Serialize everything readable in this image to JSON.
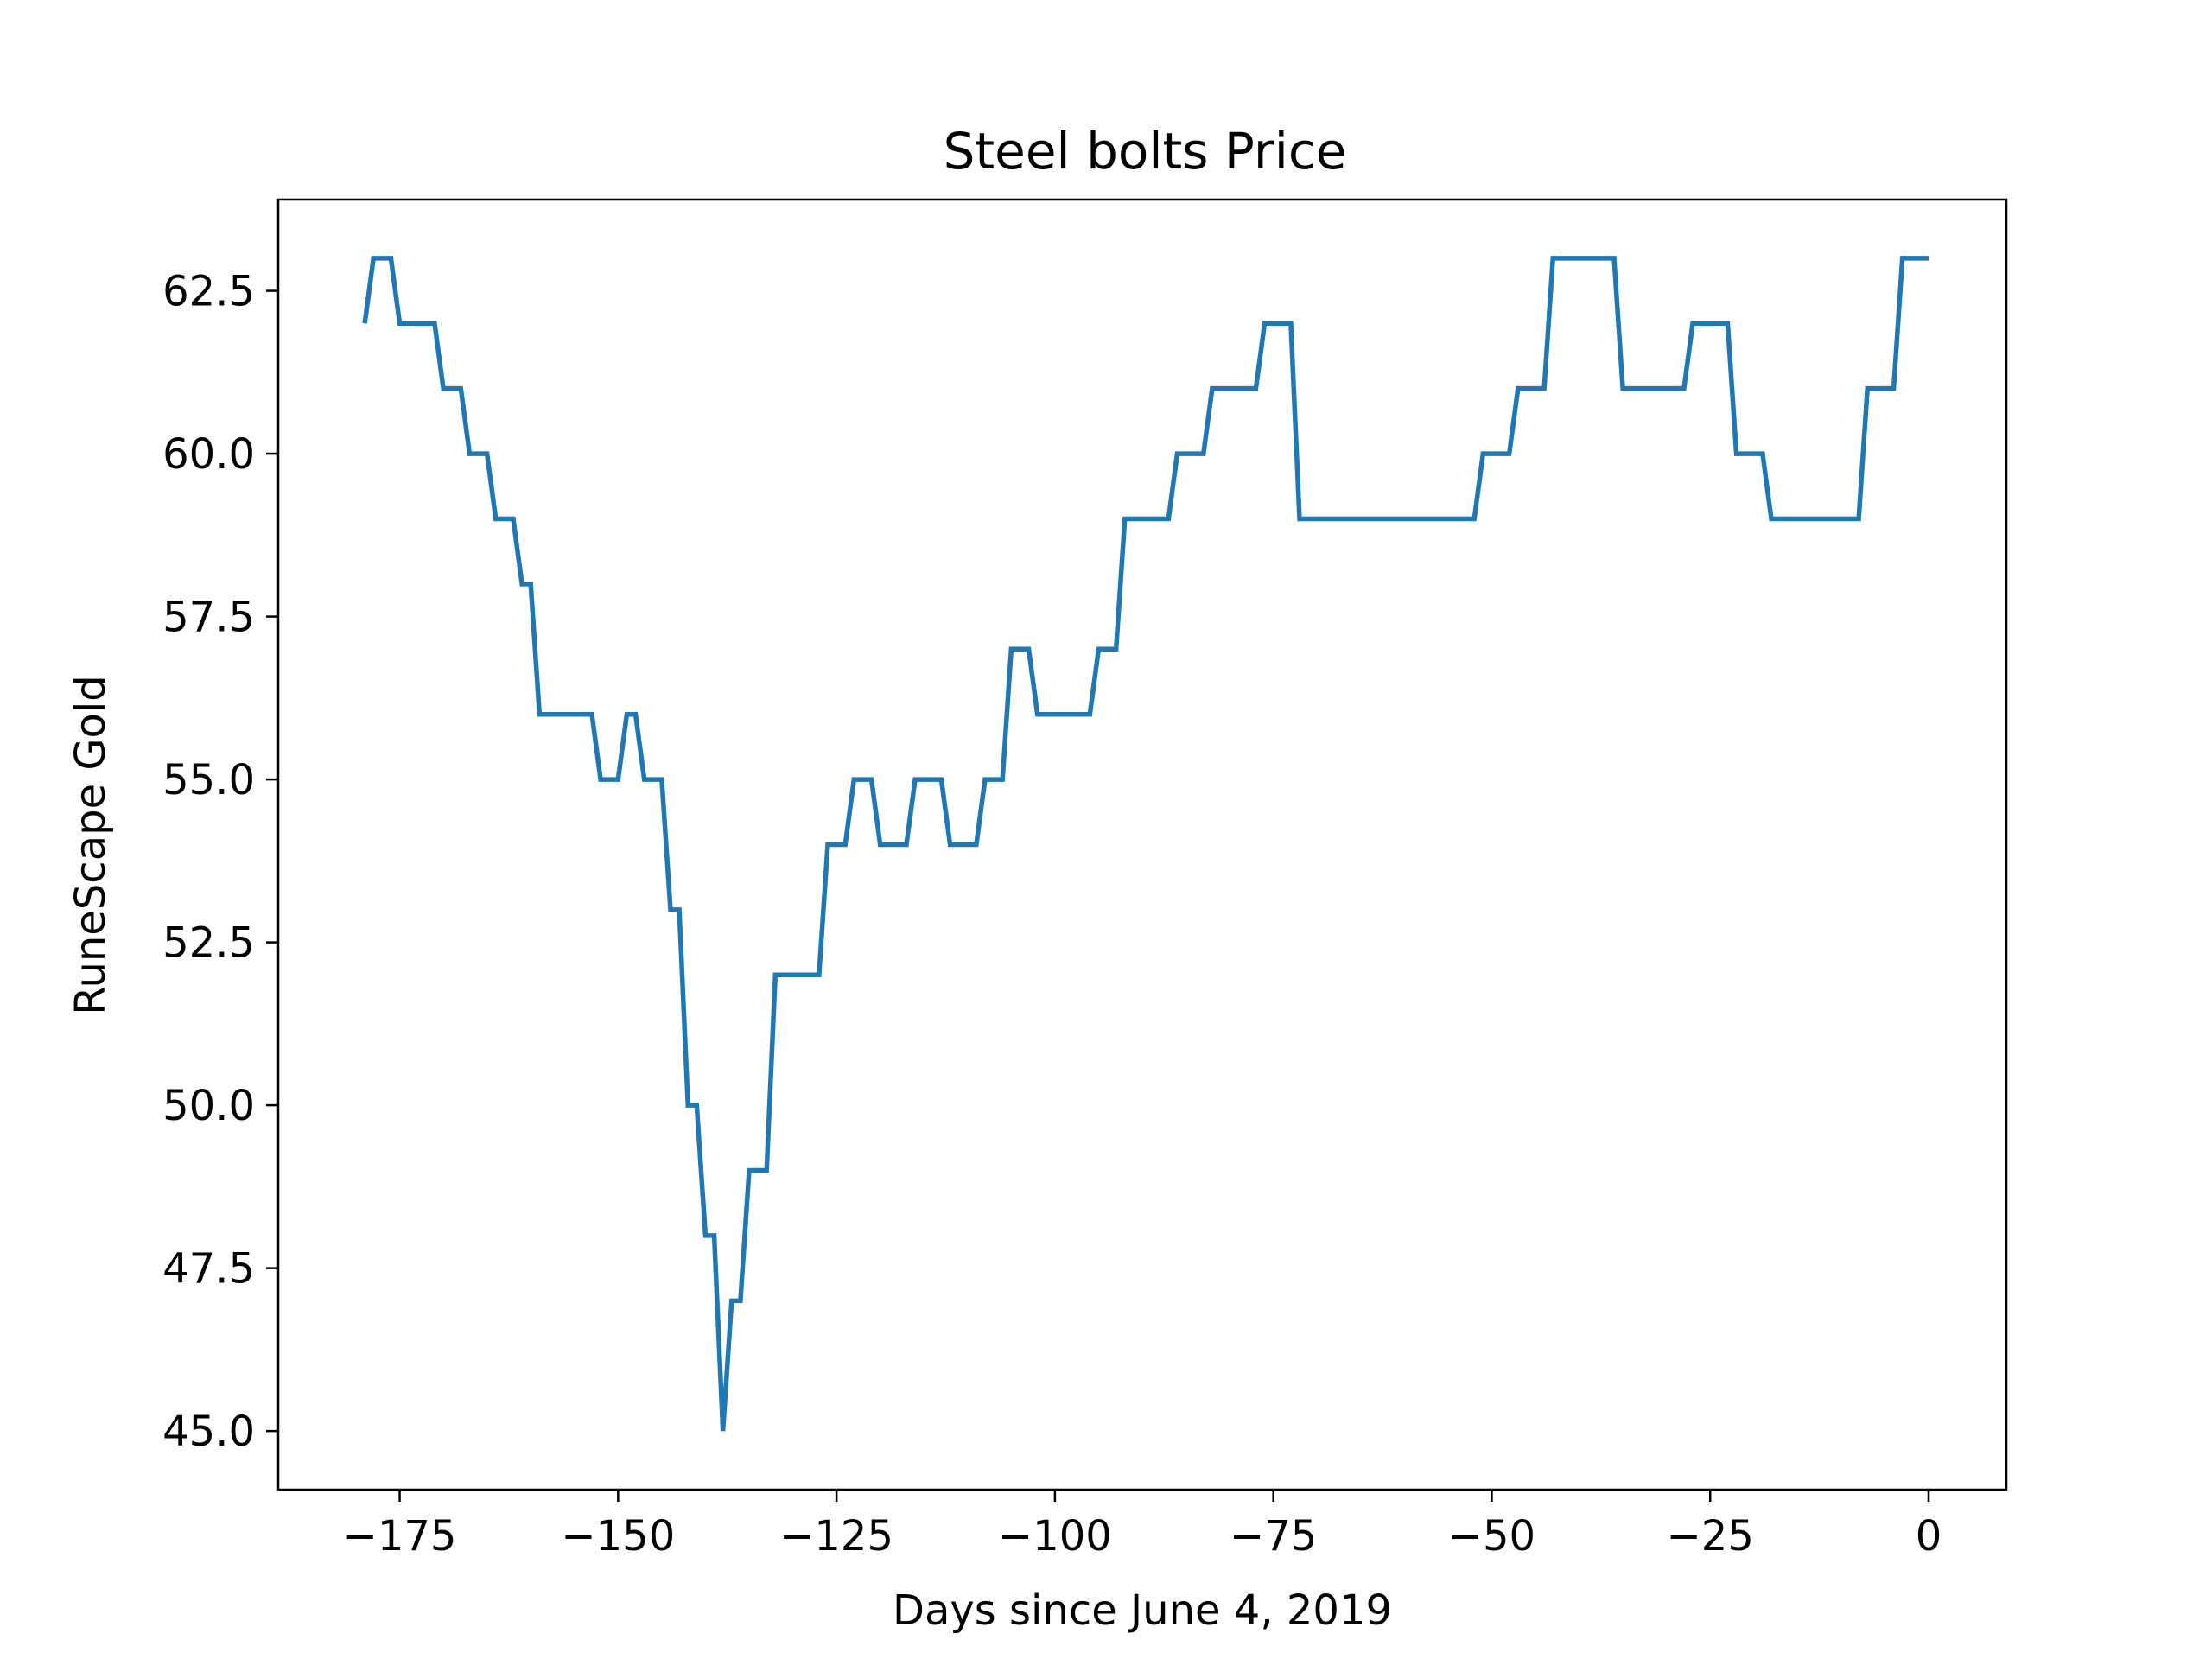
{
  "chart_data": {
    "type": "line",
    "title": "Steel bolts Price",
    "xlabel": "Days since June 4, 2019",
    "ylabel": "RuneScape Gold",
    "xlim": [
      -188.9,
      8.9
    ],
    "ylim": [
      44.1,
      63.9
    ],
    "xticks": [
      -175,
      -150,
      -125,
      -100,
      -75,
      -50,
      -25,
      0
    ],
    "xtick_labels": [
      "−175",
      "−150",
      "−125",
      "−100",
      "−75",
      "−50",
      "−25",
      "0"
    ],
    "yticks": [
      45.0,
      47.5,
      50.0,
      52.5,
      55.0,
      57.5,
      60.0,
      62.5
    ],
    "ytick_labels": [
      "45.0",
      "47.5",
      "50.0",
      "52.5",
      "55.0",
      "57.5",
      "60.0",
      "62.5"
    ],
    "grid": false,
    "series": [
      {
        "color": "#1f77b4",
        "x": [
          -179,
          -178,
          -177,
          -176,
          -175,
          -174,
          -173,
          -172,
          -171,
          -170,
          -169,
          -168,
          -167,
          -166,
          -165,
          -164,
          -163,
          -162,
          -161,
          -160,
          -159,
          -158,
          -157,
          -156,
          -155,
          -154,
          -153,
          -152,
          -151,
          -150,
          -149,
          -148,
          -147,
          -146,
          -145,
          -144,
          -143,
          -142,
          -141,
          -140,
          -139,
          -138,
          -137,
          -136,
          -135,
          -134,
          -133,
          -132,
          -131,
          -130,
          -129,
          -128,
          -127,
          -126,
          -125,
          -124,
          -123,
          -122,
          -121,
          -120,
          -119,
          -118,
          -117,
          -116,
          -115,
          -114,
          -113,
          -112,
          -111,
          -110,
          -109,
          -108,
          -107,
          -106,
          -105,
          -104,
          -103,
          -102,
          -101,
          -100,
          -99,
          -98,
          -97,
          -96,
          -95,
          -94,
          -93,
          -92,
          -91,
          -90,
          -89,
          -88,
          -87,
          -86,
          -85,
          -84,
          -83,
          -82,
          -81,
          -80,
          -79,
          -78,
          -77,
          -76,
          -75,
          -74,
          -73,
          -72,
          -71,
          -70,
          -69,
          -68,
          -67,
          -66,
          -65,
          -64,
          -63,
          -62,
          -61,
          -60,
          -59,
          -58,
          -57,
          -56,
          -55,
          -54,
          -53,
          -52,
          -51,
          -50,
          -49,
          -48,
          -47,
          -46,
          -45,
          -44,
          -43,
          -42,
          -41,
          -40,
          -39,
          -38,
          -37,
          -36,
          -35,
          -34,
          -33,
          -32,
          -31,
          -30,
          -29,
          -28,
          -27,
          -26,
          -25,
          -24,
          -23,
          -22,
          -21,
          -20,
          -19,
          -18,
          -17,
          -16,
          -15,
          -14,
          -13,
          -12,
          -11,
          -10,
          -9,
          -8,
          -7,
          -6,
          -5,
          -4,
          -3,
          -2,
          -1,
          0
        ],
        "y": [
          62,
          63,
          63,
          63,
          62,
          62,
          62,
          62,
          62,
          61,
          61,
          61,
          60,
          60,
          60,
          59,
          59,
          59,
          58,
          58,
          56,
          56,
          56,
          56,
          56,
          56,
          56,
          55,
          55,
          55,
          56,
          56,
          55,
          55,
          55,
          53,
          53,
          50,
          50,
          48,
          48,
          45,
          47,
          47,
          49,
          49,
          49,
          52,
          52,
          52,
          52,
          52,
          52,
          54,
          54,
          54,
          55,
          55,
          55,
          54,
          54,
          54,
          54,
          55,
          55,
          55,
          55,
          54,
          54,
          54,
          54,
          55,
          55,
          55,
          57,
          57,
          57,
          56,
          56,
          56,
          56,
          56,
          56,
          56,
          57,
          57,
          57,
          59,
          59,
          59,
          59,
          59,
          59,
          60,
          60,
          60,
          60,
          61,
          61,
          61,
          61,
          61,
          61,
          62,
          62,
          62,
          62,
          59,
          59,
          59,
          59,
          59,
          59,
          59,
          59,
          59,
          59,
          59,
          59,
          59,
          59,
          59,
          59,
          59,
          59,
          59,
          59,
          59,
          60,
          60,
          60,
          60,
          61,
          61,
          61,
          61,
          63,
          63,
          63,
          63,
          63,
          63,
          63,
          63,
          61,
          61,
          61,
          61,
          61,
          61,
          61,
          61,
          62,
          62,
          62,
          62,
          62,
          60,
          60,
          60,
          60,
          59,
          59,
          59,
          59,
          59,
          59,
          59,
          59,
          59,
          59,
          59,
          61,
          61,
          61,
          61,
          63,
          63,
          63,
          63
        ]
      }
    ]
  }
}
